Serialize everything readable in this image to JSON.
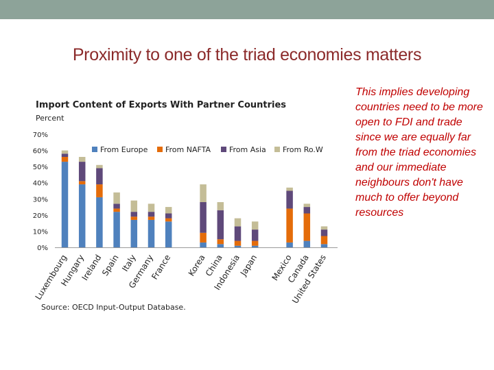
{
  "slide": {
    "title": "Proximity to one of the triad economies matters",
    "side_text": "This implies developing countries need to be more open to FDI and trade since we are equally far from the triad economies and our immediate neighbours don't have much to offer beyond resources"
  },
  "colors": {
    "top_bar": "#8da399",
    "europe": "#4f81bd",
    "nafta": "#e46c0a",
    "asia": "#5f497a",
    "row": "#c4bd97"
  },
  "chart_data": {
    "type": "bar",
    "stacked": true,
    "title": "Import  Content of Exports With Partner  Countries",
    "ylabel": "Percent",
    "ylim": [
      0,
      70
    ],
    "yticks": [
      "0%",
      "10%",
      "20%",
      "30%",
      "40%",
      "50%",
      "60%",
      "70%"
    ],
    "grid": false,
    "legend": "top",
    "categories": [
      "Luxembourg",
      "Hungary",
      "Ireland",
      "Spain",
      "Italy",
      "Germany",
      "France",
      "Korea",
      "China",
      "Indonesia",
      "Japan",
      "Mexico",
      "Canada",
      "United States"
    ],
    "groups": [
      [
        "Luxembourg",
        "Hungary",
        "Ireland",
        "Spain",
        "Italy",
        "Germany",
        "France"
      ],
      [
        "Korea",
        "China",
        "Indonesia",
        "Japan"
      ],
      [
        "Mexico",
        "Canada",
        "United States"
      ]
    ],
    "series": [
      {
        "name": "From Europe",
        "values": [
          53,
          39,
          31,
          22,
          17,
          17,
          16,
          3,
          2,
          1,
          1,
          3,
          4,
          2
        ]
      },
      {
        "name": "From NAFTA",
        "values": [
          3,
          2,
          8,
          2,
          2,
          2,
          2,
          6,
          3,
          3,
          3,
          21,
          17,
          5
        ]
      },
      {
        "name": "From Asia",
        "values": [
          2,
          12,
          10,
          3,
          3,
          3,
          3,
          19,
          18,
          9,
          7,
          11,
          4,
          4
        ]
      },
      {
        "name": "From Ro.W",
        "values": [
          2,
          3,
          2,
          7,
          7,
          5,
          4,
          11,
          5,
          5,
          5,
          2,
          2,
          2
        ]
      }
    ]
  },
  "source": "Source: OECD Input-Output Database."
}
